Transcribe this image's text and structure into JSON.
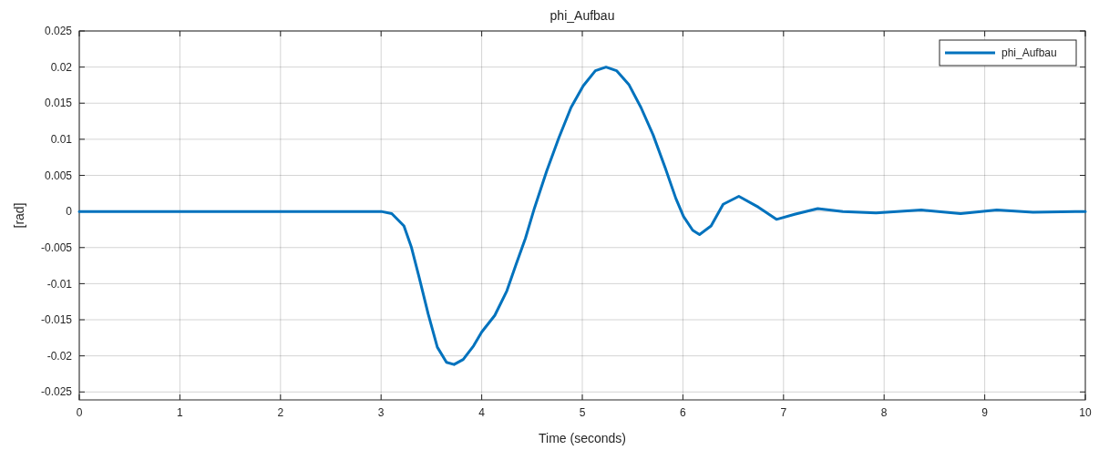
{
  "chart_data": {
    "type": "line",
    "title": "phi_Aufbau",
    "xlabel": "Time (seconds)",
    "ylabel": "[rad]",
    "xlim": [
      0,
      10
    ],
    "ylim": [
      -0.0261,
      0.025
    ],
    "xticks": [
      0,
      1,
      2,
      3,
      4,
      5,
      6,
      7,
      8,
      9,
      10
    ],
    "yticks": [
      {
        "value": -0.025,
        "label": "-0.025"
      },
      {
        "value": -0.02,
        "label": "-0.02"
      },
      {
        "value": -0.015,
        "label": "-0.015"
      },
      {
        "value": -0.01,
        "label": "-0.01"
      },
      {
        "value": -0.005,
        "label": "-0.005"
      },
      0,
      0.005,
      0.01,
      0.015,
      0.02,
      0.025
    ],
    "grid": true,
    "legend": "top right",
    "line_style": "solid",
    "marker": "none",
    "series": [
      {
        "name": "phi_Aufbau",
        "color": "#0072bd",
        "x": [
          0,
          1,
          2,
          3.0,
          3.106,
          3.227,
          3.3,
          3.378,
          3.468,
          3.559,
          3.65,
          3.725,
          3.816,
          3.92,
          4.0,
          4.13,
          4.25,
          4.34,
          4.435,
          4.525,
          4.646,
          4.767,
          4.888,
          5.009,
          5.13,
          5.236,
          5.34,
          5.462,
          5.583,
          5.704,
          5.825,
          5.93,
          6.006,
          6.097,
          6.165,
          6.28,
          6.4,
          6.556,
          6.75,
          6.93,
          7.11,
          7.34,
          7.59,
          7.92,
          8.37,
          8.76,
          9.12,
          9.48,
          9.9,
          10
        ],
        "values": [
          0,
          0,
          0,
          0,
          -0.0003,
          -0.002,
          -0.0049,
          -0.0091,
          -0.0142,
          -0.0188,
          -0.0209,
          -0.0212,
          -0.0205,
          -0.0186,
          -0.0167,
          -0.0144,
          -0.011,
          -0.0074,
          -0.0037,
          0.0005,
          0.0056,
          0.0102,
          0.0144,
          0.0174,
          0.0195,
          0.02,
          0.0195,
          0.0176,
          0.0144,
          0.0106,
          0.006,
          0.0018,
          -0.0007,
          -0.0026,
          -0.0032,
          -0.002,
          0.001,
          0.0021,
          0.0006,
          -0.0011,
          -0.0004,
          0.0004,
          0,
          -0.0002,
          0.0002,
          -0.0003,
          0.0002,
          -0.0001,
          0,
          0
        ]
      }
    ]
  }
}
